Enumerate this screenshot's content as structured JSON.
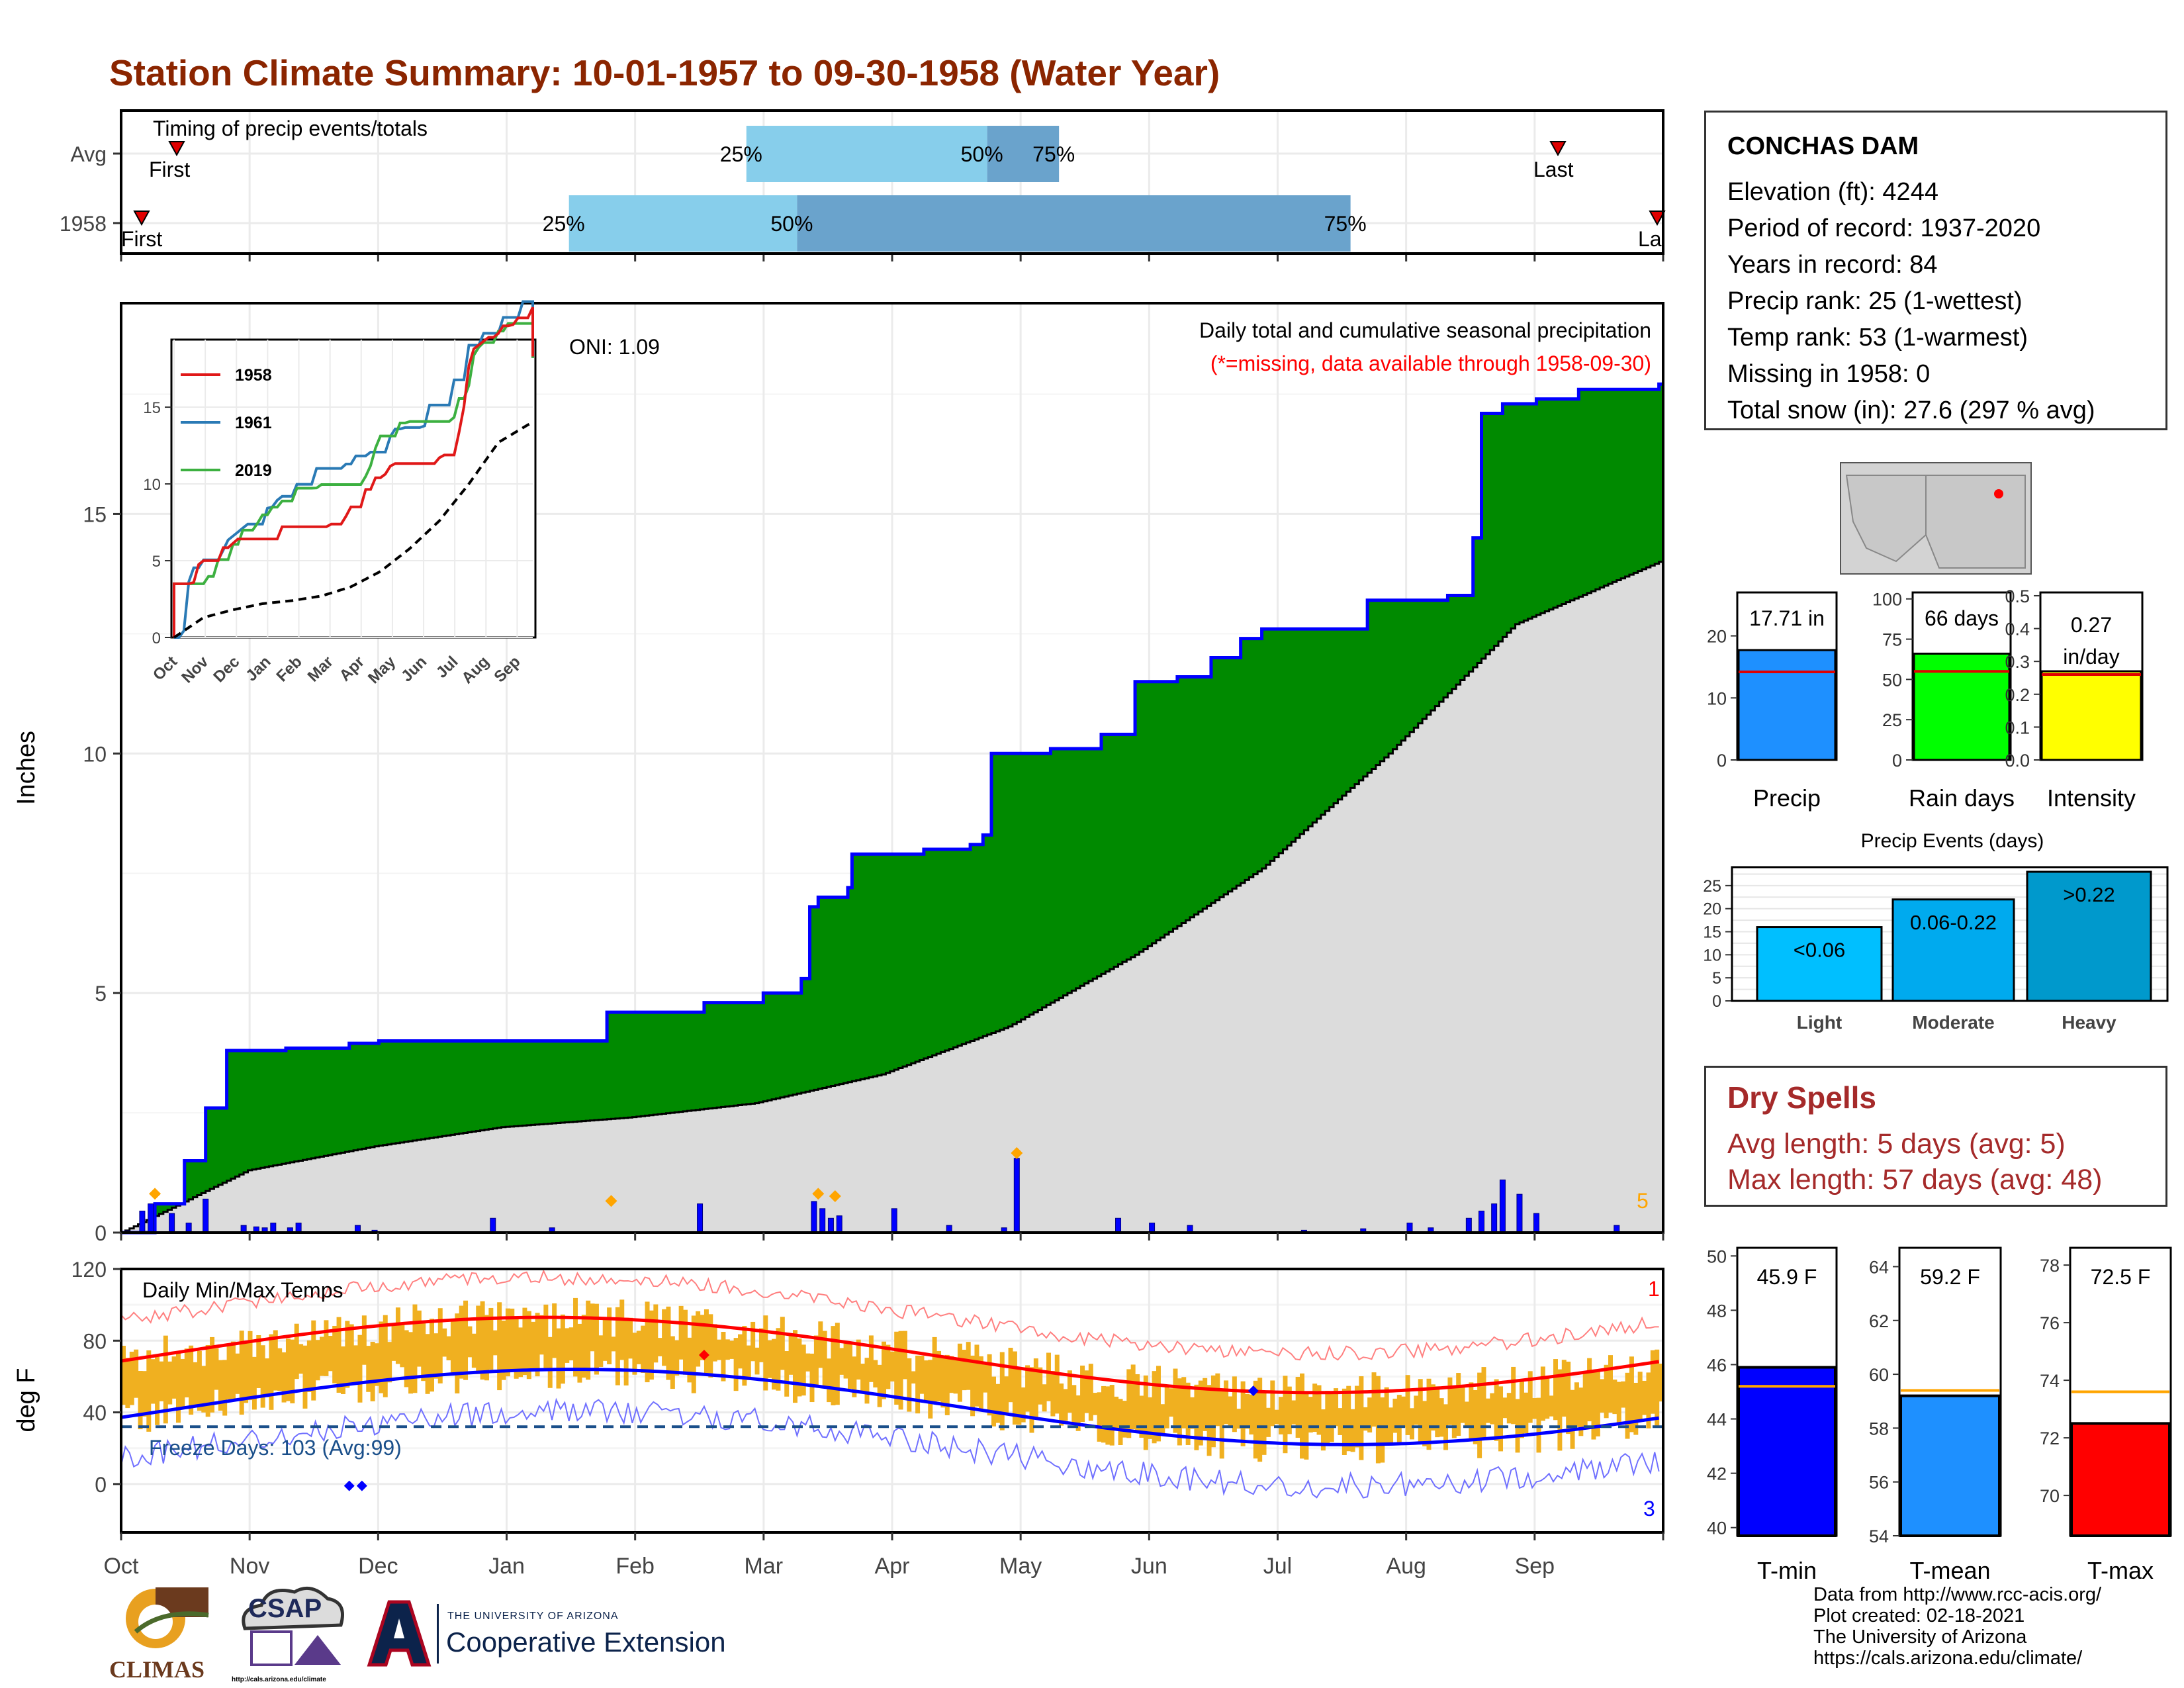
{
  "title": "Station Climate Summary: 10-01-1957 to 09-30-1958 (Water Year)",
  "colors": {
    "title": "#8b2500",
    "green": "#008a00",
    "blue": "#0000ff",
    "grey": "#dcdcdc",
    "orange": "#f0b020",
    "red": "#ff0000",
    "lightblue": "#87ceeb",
    "steel": "#6aa3cc",
    "lime": "#00ff00",
    "yellow": "#ffff00",
    "dry": "#a52a2a",
    "tmean": "#1e90ff",
    "dodger": "#1e90ff"
  },
  "timing": {
    "label": "Timing of precip events/totals",
    "rows": [
      {
        "label": "Avg",
        "first": "First",
        "last": "Last",
        "q25": "25%",
        "q50": "50%",
        "q75": "75%",
        "p25": 148,
        "p50": 205,
        "p75": 222
      },
      {
        "label": "1958",
        "first": "First",
        "last": "La",
        "q25": "25%",
        "q50": "50%",
        "q75": "75%",
        "p25": 106,
        "p50": 160,
        "p75": 291
      }
    ]
  },
  "main": {
    "ylabel": "Inches",
    "note1": "Daily total and cumulative seasonal precipitation",
    "note2": "(*=missing, data available through 1958-09-30)",
    "oni": "ONI: 1.09",
    "corner": "5",
    "yticks": [
      "0",
      "5",
      "10",
      "15"
    ],
    "months": [
      "Oct",
      "Nov",
      "Dec",
      "Jan",
      "Feb",
      "Mar",
      "Apr",
      "May",
      "Jun",
      "Jul",
      "Aug",
      "Sep"
    ]
  },
  "inset": {
    "legend": [
      "1958",
      "1961",
      "2019"
    ],
    "yticks": [
      "0",
      "5",
      "10",
      "15"
    ],
    "months": [
      "Oct",
      "Nov",
      "Dec",
      "Jan",
      "Feb",
      "Mar",
      "Apr",
      "May",
      "Jun",
      "Jul",
      "Aug",
      "Sep"
    ]
  },
  "temps": {
    "title": "Daily Min/Max Temps",
    "ylabel": "deg F",
    "freeze": "Freeze Days: 103 (Avg:99)",
    "corner_top": "1",
    "corner_bottom": "3",
    "yticks": [
      "0",
      "40",
      "80",
      "120"
    ]
  },
  "station": {
    "name": "CONCHAS DAM",
    "lines": [
      "Elevation (ft): 4244",
      "Period of record: 1937-2020",
      "Years in record: 84",
      "Precip rank: 25 (1-wettest)",
      "Temp rank: 53 (1-warmest)",
      "Missing in 1958: 0",
      "Total snow (in): 27.6 (297 % avg)"
    ]
  },
  "small_bars": [
    {
      "label": "Precip",
      "value_text": "17.71 in",
      "value": 17.71,
      "avg": 14.2,
      "ymax": 27,
      "ticks": [
        "0",
        "10",
        "20"
      ],
      "tickvals": [
        0,
        10,
        20
      ],
      "color": "#1e90ff"
    },
    {
      "label": "Rain days",
      "value_text": "66 days",
      "value": 66,
      "avg": 55,
      "ymax": 104,
      "ticks": [
        "0",
        "25",
        "50",
        "75",
        "100"
      ],
      "tickvals": [
        0,
        25,
        50,
        75,
        100
      ],
      "color": "#00ff00"
    },
    {
      "label": "Intensity",
      "value_text": "0.27",
      "value_text2": "in/day",
      "value": 0.27,
      "avg": 0.26,
      "ymax": 0.51,
      "ticks": [
        "0.0",
        "0.1",
        "0.2",
        "0.3",
        "0.4",
        "0.5"
      ],
      "tickvals": [
        0,
        0.1,
        0.2,
        0.3,
        0.4,
        0.5
      ],
      "color": "#ffff00"
    }
  ],
  "events": {
    "title": "Precip Events (days)",
    "ticks": [
      "0",
      "5",
      "10",
      "15",
      "20",
      "25"
    ],
    "bars": [
      {
        "label": "Light",
        "value_text": "<0.06",
        "value": 16,
        "color": "#00bfff"
      },
      {
        "label": "Moderate",
        "value_text": "0.06-0.22",
        "value": 22,
        "color": "#00aaee"
      },
      {
        "label": "Heavy",
        "value_text": ">0.22",
        "value": 28,
        "color": "#0099cc"
      }
    ]
  },
  "dry": {
    "title": "Dry Spells",
    "line1": "Avg length: 5 days (avg: 5)",
    "line2": "Max length: 57 days (avg: 48)"
  },
  "temp_bars": [
    {
      "label": "T-min",
      "value_text": "45.9 F",
      "value": 45.9,
      "avg": 45.2,
      "ymin": 39.7,
      "ymax": 50.3,
      "ticks": [
        "40",
        "42",
        "44",
        "46",
        "48",
        "50"
      ],
      "tickvals": [
        40,
        42,
        44,
        46,
        48,
        50
      ],
      "color": "#0000ff"
    },
    {
      "label": "T-mean",
      "value_text": "59.2 F",
      "value": 59.2,
      "avg": 59.4,
      "ymin": 54,
      "ymax": 64.7,
      "ticks": [
        "54",
        "56",
        "58",
        "60",
        "62",
        "64"
      ],
      "tickvals": [
        54,
        56,
        58,
        60,
        62,
        64
      ],
      "color": "#1e90ff"
    },
    {
      "label": "T-max",
      "value_text": "72.5 F",
      "value": 72.5,
      "avg": 73.6,
      "ymin": 68.6,
      "ymax": 78.6,
      "ticks": [
        "70",
        "72",
        "74",
        "76",
        "78"
      ],
      "tickvals": [
        70,
        72,
        74,
        76,
        78
      ],
      "color": "#ff0000"
    }
  ],
  "footer": {
    "lines": [
      "Data from http://www.rcc-acis.org/",
      "Plot created: 02-18-2021",
      "The University of Arizona",
      "https://cals.arizona.edu/climate/"
    ],
    "climas": "CLIMAS",
    "csap": "CSAP",
    "csap_url": "http://cals.arizona.edu/climate",
    "ua_small": "THE UNIVERSITY OF ARIZONA",
    "ua_big": "Cooperative Extension"
  },
  "chart_data": {
    "type": "area",
    "title": "Daily total and cumulative seasonal precipitation",
    "ylabel": "Inches",
    "ylim": [
      0,
      19.4
    ],
    "series": [
      {
        "name": "1958",
        "x_day": [
          0,
          8,
          15,
          20,
          25,
          32,
          39,
          48,
          54,
          61,
          68,
          75,
          85,
          92,
          100,
          110,
          115,
          127,
          138,
          140,
          152,
          158,
          161,
          163,
          165,
          167,
          172,
          173,
          190,
          201,
          204,
          206,
          213,
          220,
          232,
          236,
          240,
          250,
          258,
          265,
          270,
          280,
          295,
          305,
          314,
          320,
          322,
          327,
          335,
          345,
          364
        ],
        "values": [
          0,
          0.6,
          1.5,
          2.6,
          3.8,
          3.8,
          3.85,
          3.85,
          3.95,
          4.0,
          4.0,
          4.0,
          4.0,
          4.0,
          4.0,
          4.0,
          4.6,
          4.6,
          4.8,
          4.8,
          5.0,
          5.0,
          5.3,
          6.8,
          7.0,
          7.0,
          7.2,
          7.9,
          8.0,
          8.1,
          8.3,
          10.0,
          10.0,
          10.1,
          10.4,
          10.4,
          11.5,
          11.6,
          12.0,
          12.4,
          12.6,
          12.6,
          13.2,
          13.2,
          13.3,
          14.5,
          17.1,
          17.3,
          17.4,
          17.6,
          17.71
        ]
      },
      {
        "name": "Avg",
        "x_day": [
          0,
          30,
          60,
          90,
          120,
          150,
          180,
          210,
          240,
          270,
          300,
          330,
          364
        ],
        "values": [
          0,
          1.3,
          1.8,
          2.2,
          2.4,
          2.7,
          3.3,
          4.3,
          5.8,
          7.6,
          10.0,
          12.7,
          14.0
        ]
      }
    ],
    "daily_events_x_day": [
      5,
      7,
      12,
      16,
      20,
      29,
      32,
      34,
      36,
      40,
      42,
      56,
      60,
      88,
      102,
      137,
      164,
      166,
      168,
      170,
      183,
      196,
      209,
      212,
      236,
      244,
      253,
      280,
      294,
      305,
      310,
      319,
      322,
      325,
      327,
      331,
      335,
      354
    ],
    "daily_events_values": [
      0.45,
      0.6,
      0.4,
      0.2,
      0.7,
      0.15,
      0.12,
      0.1,
      0.2,
      0.1,
      0.2,
      0.15,
      0.05,
      0.3,
      0.1,
      0.6,
      0.65,
      0.5,
      0.3,
      0.35,
      0.5,
      0.15,
      0.1,
      1.55,
      0.3,
      0.2,
      0.15,
      0.05,
      0.08,
      0.2,
      0.1,
      0.3,
      0.45,
      0.6,
      1.1,
      0.8,
      0.4,
      0.15
    ]
  }
}
